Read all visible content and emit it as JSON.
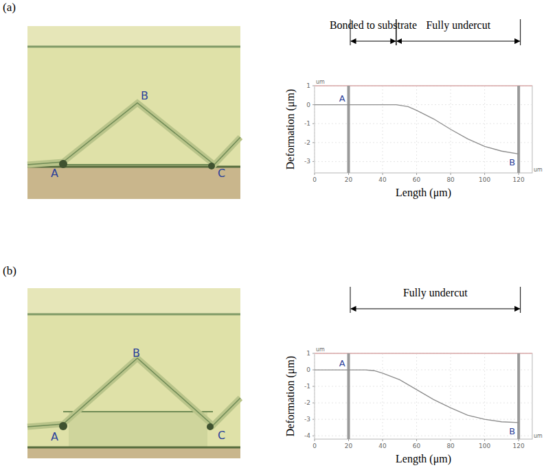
{
  "figure": {
    "panels": [
      {
        "letter": "(a)",
        "image_labels": [
          "A",
          "B",
          "C"
        ]
      },
      {
        "letter": "(b)",
        "image_labels": [
          "A",
          "B",
          "C"
        ]
      }
    ]
  },
  "chart_data": [
    {
      "type": "line",
      "x_label": "Length (μm)",
      "y_label": "Deformation (μm)",
      "x_unit": "um",
      "y_unit": "um",
      "x": [
        0,
        10,
        20,
        30,
        40,
        48,
        55,
        60,
        70,
        80,
        90,
        100,
        110,
        120
      ],
      "values": [
        0,
        0,
        0,
        0,
        0,
        0,
        -0.1,
        -0.3,
        -0.75,
        -1.3,
        -1.8,
        -2.2,
        -2.45,
        -2.6
      ],
      "color": "#8c8c8c",
      "xlim": [
        0,
        128
      ],
      "xticks": [
        0,
        20,
        40,
        60,
        80,
        100,
        120
      ],
      "ylim": [
        -3.6,
        1
      ],
      "yticks": [
        1,
        0,
        -1,
        -2,
        -3
      ],
      "grid": true,
      "markers": [
        {
          "label": "A",
          "x": 20
        },
        {
          "label": "B",
          "x": 120
        }
      ],
      "spans": [
        {
          "text": "Bonded to substrate",
          "x": [
            21,
            48
          ]
        },
        {
          "text": "Fully undercut",
          "x": [
            48,
            121
          ]
        }
      ]
    },
    {
      "type": "line",
      "x_label": "Length (μm)",
      "y_label": "Deformation (μm)",
      "x_unit": "um",
      "y_unit": "um",
      "x": [
        0,
        10,
        20,
        30,
        35,
        40,
        50,
        60,
        70,
        80,
        90,
        100,
        110,
        120
      ],
      "values": [
        0,
        0,
        0,
        0,
        -0.05,
        -0.2,
        -0.6,
        -1.2,
        -1.8,
        -2.3,
        -2.75,
        -3.0,
        -3.15,
        -3.2
      ],
      "color": "#8c8c8c",
      "xlim": [
        0,
        128
      ],
      "xticks": [
        0,
        20,
        40,
        60,
        80,
        100,
        120
      ],
      "ylim": [
        -4.2,
        1
      ],
      "yticks": [
        1,
        0,
        -1,
        -2,
        -3,
        -4
      ],
      "grid": true,
      "markers": [
        {
          "label": "A",
          "x": 20
        },
        {
          "label": "B",
          "x": 120
        }
      ],
      "spans": [
        {
          "text": "Fully undercut",
          "x": [
            21,
            121
          ]
        }
      ]
    }
  ]
}
